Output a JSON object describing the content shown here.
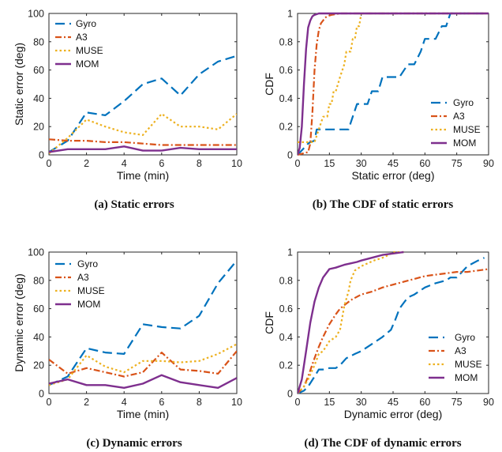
{
  "colors": {
    "Gyro": "#0072BD",
    "A3": "#D95319",
    "MUSE": "#EDB120",
    "MOM": "#7E2F8E"
  },
  "chart_data": [
    {
      "type": "line",
      "caption": "(a) Static errors",
      "xlabel": "Time (min)",
      "ylabel": "Static error (deg)",
      "xlim": [
        0,
        10
      ],
      "ylim": [
        0,
        100
      ],
      "xticks": [
        0,
        2,
        4,
        6,
        8,
        10
      ],
      "yticks": [
        0,
        20,
        40,
        60,
        80,
        100
      ],
      "legend_position": "top-left",
      "x": [
        0,
        1,
        2,
        3,
        4,
        5,
        6,
        7,
        8,
        9,
        10
      ],
      "series": [
        {
          "name": "Gyro",
          "values": [
            2,
            10,
            30,
            28,
            38,
            50,
            54,
            42,
            57,
            66,
            70
          ]
        },
        {
          "name": "A3",
          "values": [
            11,
            10,
            10,
            9,
            9,
            8,
            7,
            7,
            7,
            7,
            7
          ]
        },
        {
          "name": "MUSE",
          "values": [
            1,
            12,
            25,
            20,
            16,
            14,
            29,
            20,
            20,
            18,
            29
          ]
        },
        {
          "name": "MOM",
          "values": [
            2,
            4,
            4,
            4,
            6,
            3,
            3,
            5,
            4,
            4,
            4
          ]
        }
      ]
    },
    {
      "type": "line",
      "caption": "(b) The CDF of static errors",
      "xlabel": "Static error (deg)",
      "ylabel": "CDF",
      "xlim": [
        0,
        90
      ],
      "ylim": [
        0,
        1
      ],
      "xticks": [
        0,
        15,
        30,
        45,
        60,
        75,
        90
      ],
      "yticks": [
        0,
        0.2,
        0.4,
        0.6,
        0.8,
        1
      ],
      "legend_position": "bottom-right",
      "series": [
        {
          "name": "Gyro",
          "x": [
            0,
            5,
            6,
            8,
            9,
            10,
            12,
            15,
            20,
            22,
            24,
            28,
            30,
            33,
            35,
            38,
            40,
            44,
            48,
            52,
            55,
            58,
            60,
            63,
            65,
            68,
            70,
            72,
            90
          ],
          "values": [
            0,
            0.08,
            0.09,
            0.1,
            0.18,
            0.18,
            0.18,
            0.18,
            0.18,
            0.18,
            0.18,
            0.36,
            0.36,
            0.36,
            0.45,
            0.45,
            0.55,
            0.55,
            0.55,
            0.64,
            0.64,
            0.73,
            0.82,
            0.82,
            0.82,
            0.91,
            0.91,
            1,
            1
          ]
        },
        {
          "name": "A3",
          "x": [
            0,
            5,
            6,
            7,
            8,
            9,
            10,
            11,
            12,
            13,
            14,
            16,
            20,
            25,
            30,
            90
          ],
          "values": [
            0,
            0.02,
            0.08,
            0.3,
            0.6,
            0.78,
            0.88,
            0.93,
            0.95,
            0.97,
            0.98,
            0.99,
            1,
            1,
            1,
            1
          ]
        },
        {
          "name": "MUSE",
          "x": [
            0,
            2,
            3,
            4,
            8,
            10,
            12,
            14,
            15,
            16,
            17,
            18,
            20,
            22,
            23,
            24,
            25,
            26,
            27,
            28,
            29,
            30,
            90
          ],
          "values": [
            0.09,
            0.09,
            0.09,
            0.09,
            0.09,
            0.18,
            0.27,
            0.27,
            0.36,
            0.36,
            0.45,
            0.45,
            0.55,
            0.64,
            0.73,
            0.73,
            0.73,
            0.82,
            0.82,
            0.91,
            0.91,
            1,
            1
          ]
        },
        {
          "name": "MOM",
          "x": [
            0,
            1,
            2,
            3,
            4,
            5,
            6,
            7,
            8,
            10,
            12,
            90
          ],
          "values": [
            0,
            0.05,
            0.2,
            0.5,
            0.75,
            0.9,
            0.95,
            0.98,
            0.99,
            1,
            1,
            1
          ]
        }
      ]
    },
    {
      "type": "line",
      "caption": "(c) Dynamic errors",
      "xlabel": "Time (min)",
      "ylabel": "Dynamic error (deg)",
      "xlim": [
        0,
        10
      ],
      "ylim": [
        0,
        100
      ],
      "xticks": [
        0,
        2,
        4,
        6,
        8,
        10
      ],
      "yticks": [
        0,
        20,
        40,
        60,
        80,
        100
      ],
      "legend_position": "top-left",
      "x": [
        0,
        1,
        2,
        3,
        4,
        5,
        6,
        7,
        8,
        9,
        10
      ],
      "series": [
        {
          "name": "Gyro",
          "values": [
            6,
            12,
            32,
            29,
            28,
            49,
            47,
            46,
            55,
            78,
            94
          ]
        },
        {
          "name": "A3",
          "values": [
            24,
            14,
            18,
            15,
            12,
            15,
            29,
            17,
            16,
            14,
            30
          ]
        },
        {
          "name": "MUSE",
          "values": [
            6,
            10,
            27,
            19,
            15,
            23,
            23,
            22,
            23,
            28,
            35
          ]
        },
        {
          "name": "MOM",
          "values": [
            7,
            10,
            6,
            6,
            4,
            7,
            13,
            8,
            6,
            4,
            11
          ]
        }
      ]
    },
    {
      "type": "line",
      "caption": "(d) The CDF of dynamic errors",
      "xlabel": "Dynamic error (deg)",
      "ylabel": "CDF",
      "xlim": [
        0,
        90
      ],
      "ylim": [
        0,
        1
      ],
      "xticks": [
        0,
        15,
        30,
        45,
        60,
        75,
        90
      ],
      "yticks": [
        0,
        0.2,
        0.4,
        0.6,
        0.8,
        1
      ],
      "legend_position": "bottom-right",
      "series": [
        {
          "name": "Gyro",
          "x": [
            0,
            3,
            5,
            8,
            10,
            12,
            15,
            18,
            20,
            23,
            27,
            30,
            35,
            40,
            44,
            46,
            48,
            50,
            52,
            55,
            60,
            65,
            70,
            72,
            75,
            80,
            85,
            88
          ],
          "values": [
            0,
            0.02,
            0.05,
            0.12,
            0.17,
            0.17,
            0.18,
            0.18,
            0.2,
            0.25,
            0.28,
            0.3,
            0.35,
            0.4,
            0.45,
            0.52,
            0.6,
            0.64,
            0.68,
            0.7,
            0.75,
            0.78,
            0.8,
            0.82,
            0.82,
            0.9,
            0.94,
            0.96
          ]
        },
        {
          "name": "A3",
          "x": [
            0,
            3,
            5,
            8,
            10,
            12,
            15,
            18,
            20,
            25,
            30,
            35,
            40,
            45,
            50,
            55,
            60,
            65,
            70,
            75,
            80,
            85,
            90
          ],
          "values": [
            0,
            0.05,
            0.12,
            0.25,
            0.33,
            0.4,
            0.49,
            0.56,
            0.6,
            0.66,
            0.7,
            0.72,
            0.75,
            0.77,
            0.79,
            0.81,
            0.83,
            0.84,
            0.85,
            0.86,
            0.86,
            0.87,
            0.88
          ]
        },
        {
          "name": "MUSE",
          "x": [
            0,
            3,
            5,
            8,
            10,
            12,
            15,
            18,
            20,
            22,
            24,
            25,
            27,
            30,
            33,
            36,
            40,
            43,
            45,
            50
          ],
          "values": [
            0,
            0.05,
            0.1,
            0.2,
            0.28,
            0.3,
            0.37,
            0.4,
            0.45,
            0.62,
            0.72,
            0.8,
            0.87,
            0.9,
            0.92,
            0.94,
            0.96,
            0.98,
            1,
            1
          ]
        },
        {
          "name": "MOM",
          "x": [
            0,
            2,
            4,
            6,
            8,
            10,
            12,
            14,
            15,
            18,
            20,
            22,
            25,
            28,
            30,
            35,
            40,
            45,
            50
          ],
          "values": [
            0,
            0.1,
            0.3,
            0.5,
            0.65,
            0.75,
            0.82,
            0.86,
            0.88,
            0.89,
            0.9,
            0.91,
            0.92,
            0.93,
            0.94,
            0.96,
            0.98,
            0.99,
            1
          ]
        }
      ]
    }
  ]
}
